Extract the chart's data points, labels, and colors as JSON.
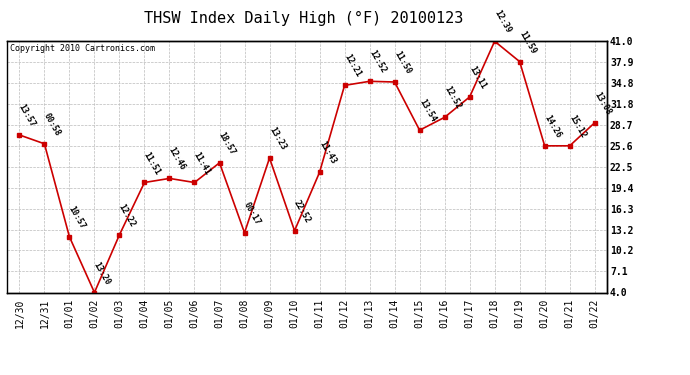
{
  "title": "THSW Index Daily High (°F) 20100123",
  "copyright": "Copyright 2010 Cartronics.com",
  "x_labels": [
    "12/30",
    "12/31",
    "01/01",
    "01/02",
    "01/03",
    "01/04",
    "01/05",
    "01/06",
    "01/07",
    "01/08",
    "01/09",
    "01/10",
    "01/11",
    "01/12",
    "01/13",
    "01/14",
    "01/15",
    "01/16",
    "01/17",
    "01/18",
    "01/19",
    "01/20",
    "01/21",
    "01/22"
  ],
  "y_values": [
    27.2,
    25.9,
    12.2,
    4.0,
    12.5,
    20.2,
    20.8,
    20.2,
    23.1,
    12.8,
    23.8,
    13.1,
    21.7,
    34.5,
    35.1,
    35.0,
    27.9,
    29.8,
    32.8,
    41.0,
    38.0,
    25.6,
    25.6,
    29.0
  ],
  "time_labels": [
    "13:57",
    "00:58",
    "10:57",
    "13:20",
    "12:22",
    "11:51",
    "12:46",
    "11:41",
    "18:57",
    "00:17",
    "13:23",
    "22:52",
    "11:43",
    "12:21",
    "12:52",
    "11:50",
    "13:54",
    "12:52",
    "13:11",
    "12:39",
    "11:59",
    "14:26",
    "15:12",
    "13:08"
  ],
  "line_color": "#cc0000",
  "marker_color": "#cc0000",
  "bg_color": "#ffffff",
  "grid_color": "#bbbbbb",
  "ylim": [
    4.0,
    41.0
  ],
  "yticks": [
    4.0,
    7.1,
    10.2,
    13.2,
    16.3,
    19.4,
    22.5,
    25.6,
    28.7,
    31.8,
    34.8,
    37.9,
    41.0
  ],
  "title_fontsize": 11,
  "tick_fontsize": 7,
  "time_label_fontsize": 6,
  "copyright_fontsize": 6
}
